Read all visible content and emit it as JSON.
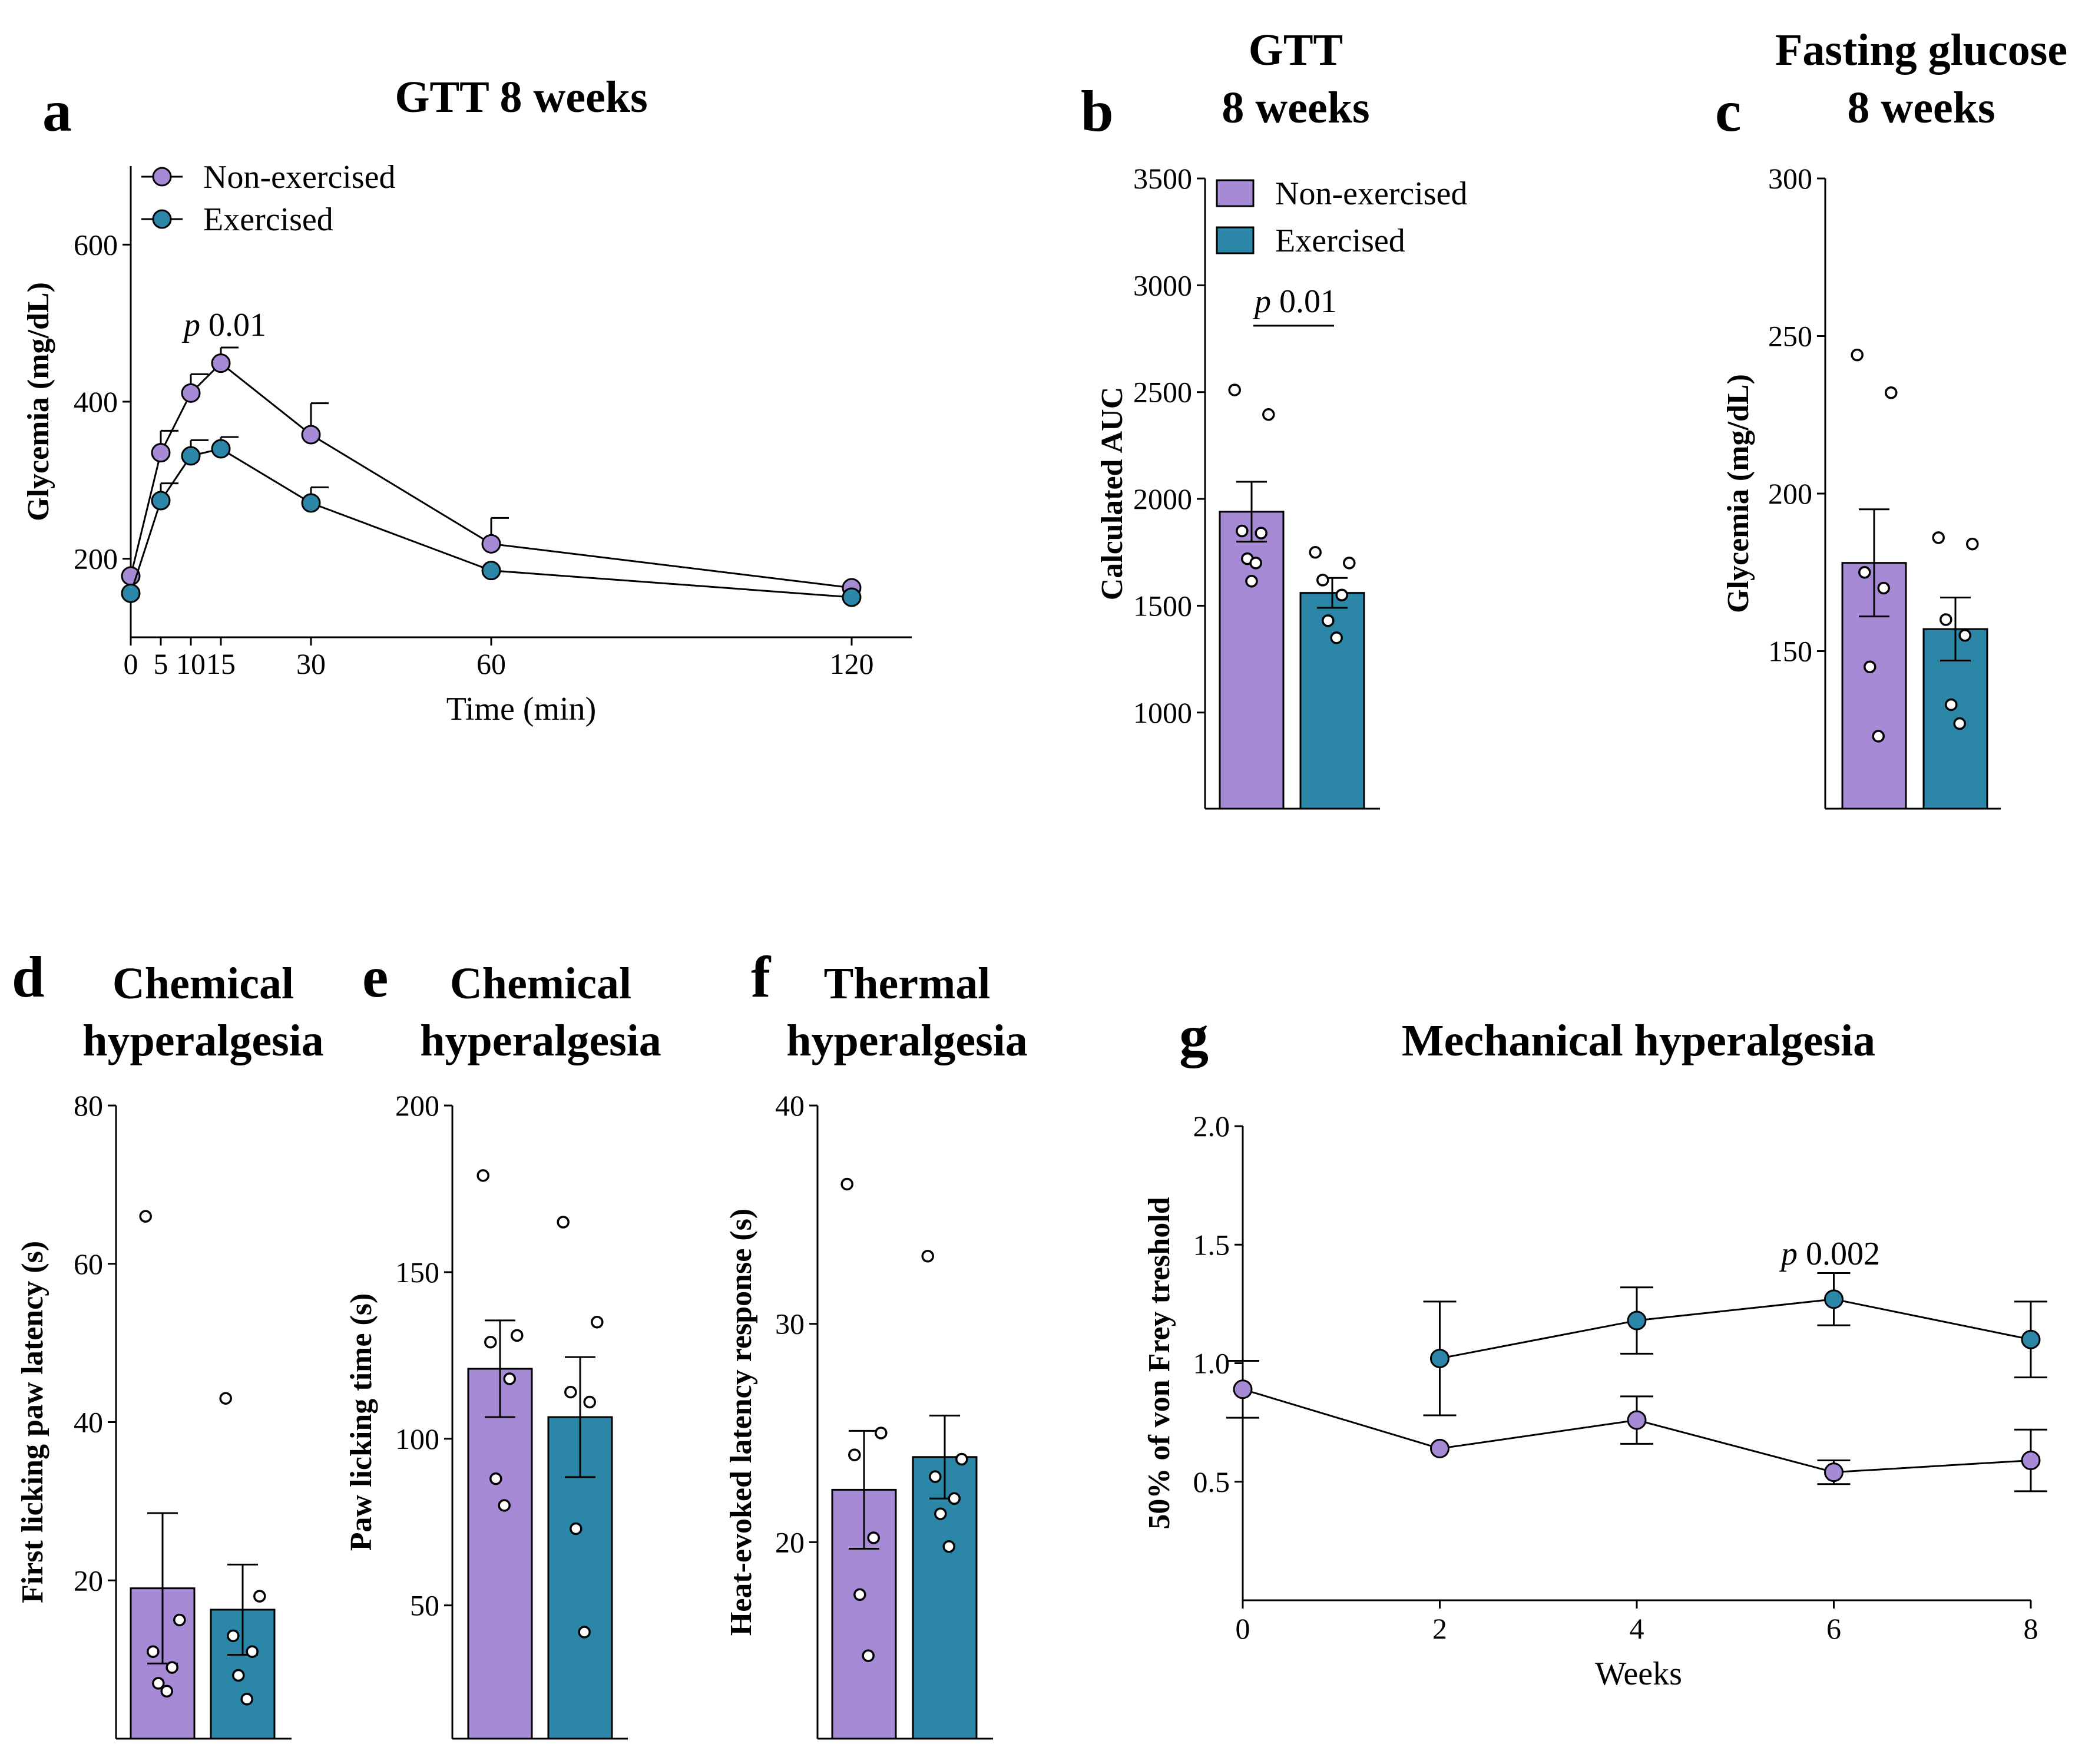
{
  "colors": {
    "non_exercised": "#A68ad6",
    "exercised": "#2c86a8",
    "axis": "#000000"
  },
  "legend": {
    "non_exercised": "Non-exercised",
    "exercised": "Exercised"
  },
  "chart_data": [
    {
      "id": "a",
      "panel_label": "a",
      "type": "line",
      "title": "GTT 8 weeks",
      "xlabel": "Time (min)",
      "ylabel": "Glycemia (mg/dL)",
      "x": [
        0,
        5,
        10,
        15,
        30,
        60,
        120
      ],
      "x_ticks": [
        0,
        5,
        10,
        15,
        30,
        60,
        120
      ],
      "y_ticks": [
        200,
        400,
        600
      ],
      "xlim": [
        0,
        125
      ],
      "ylim": [
        100,
        700
      ],
      "series": [
        {
          "name": "Non-exercised",
          "values": [
            178,
            335,
            411,
            449,
            358,
            219,
            163
          ],
          "errors": [
            0,
            28,
            24,
            20,
            40,
            33,
            0
          ]
        },
        {
          "name": "Exercised",
          "values": [
            156,
            274,
            331,
            340,
            271,
            185,
            151
          ],
          "errors": [
            0,
            22,
            20,
            15,
            20,
            0,
            0
          ]
        }
      ],
      "annotation": {
        "p": "p",
        "text": " 0.01"
      }
    },
    {
      "id": "b",
      "panel_label": "b",
      "type": "bar",
      "title": [
        "GTT",
        "8 weeks"
      ],
      "ylabel": "Calculated AUC",
      "y_ticks": [
        1000,
        1500,
        2000,
        2500,
        3000,
        3500
      ],
      "ylim": [
        550,
        3500
      ],
      "categories": [
        "Non-exercised",
        "Exercised"
      ],
      "values": [
        1940,
        1560
      ],
      "errors": [
        140,
        70
      ],
      "points": [
        [
          2510,
          2395,
          1850,
          1840,
          1720,
          1700,
          1615
        ],
        [
          1750,
          1700,
          1620,
          1550,
          1430,
          1350
        ]
      ],
      "annotation": {
        "p": "p",
        "text": " 0.01"
      }
    },
    {
      "id": "c",
      "panel_label": "c",
      "type": "bar",
      "title": [
        "Fasting glucose",
        "8 weeks"
      ],
      "ylabel": "Glycemia (mg/dL)",
      "y_ticks": [
        150,
        200,
        250,
        300
      ],
      "ylim": [
        100,
        300
      ],
      "categories": [
        "Non-exercised",
        "Exercised"
      ],
      "values": [
        178,
        157
      ],
      "errors": [
        17,
        10
      ],
      "points": [
        [
          244,
          232,
          175,
          170,
          145,
          123
        ],
        [
          186,
          184,
          160,
          155,
          133,
          127
        ]
      ]
    },
    {
      "id": "d",
      "panel_label": "d",
      "type": "bar",
      "title": [
        "Chemical",
        "hyperalgesia"
      ],
      "ylabel": "First licking paw latency (s)",
      "y_ticks": [
        20,
        40,
        60,
        80
      ],
      "ylim": [
        0,
        80
      ],
      "categories": [
        "Non-exercised",
        "Exercised"
      ],
      "values": [
        19,
        16.3
      ],
      "errors": [
        9.5,
        5.7
      ],
      "points": [
        [
          66,
          15,
          11,
          9,
          7,
          6
        ],
        [
          43,
          18,
          13,
          11,
          8,
          5
        ]
      ]
    },
    {
      "id": "e",
      "panel_label": "e",
      "type": "bar",
      "title": [
        "Chemical",
        "hyperalgesia"
      ],
      "ylabel": "Paw licking time (s)",
      "y_ticks": [
        50,
        100,
        150,
        200
      ],
      "ylim": [
        10,
        200
      ],
      "categories": [
        "Non-exercised",
        "Exercised"
      ],
      "values": [
        121,
        106.5
      ],
      "errors": [
        14.5,
        18
      ],
      "points": [
        [
          179,
          131,
          129,
          118,
          88,
          80
        ],
        [
          165,
          135,
          114,
          111,
          73,
          42
        ]
      ]
    },
    {
      "id": "f",
      "panel_label": "f",
      "type": "bar",
      "title": [
        "Thermal",
        "hyperalgesia"
      ],
      "ylabel": "Heat-evoked latency response (s)",
      "y_ticks": [
        20,
        30,
        40
      ],
      "ylim": [
        11,
        40
      ],
      "categories": [
        "Non-exercised",
        "Exercised"
      ],
      "values": [
        22.4,
        23.9
      ],
      "errors": [
        2.7,
        1.9
      ],
      "points": [
        [
          36.4,
          25,
          24,
          20.2,
          17.6,
          14.8
        ],
        [
          33.1,
          23.8,
          23,
          22,
          21.3,
          19.8
        ]
      ]
    },
    {
      "id": "g",
      "panel_label": "g",
      "type": "line",
      "title": "Mechanical hyperalgesia",
      "xlabel": "Weeks",
      "ylabel": "50% of von Frey treshold",
      "x_ticks": [
        0,
        2,
        4,
        6,
        8
      ],
      "y_ticks": [
        0.5,
        1.0,
        1.5,
        2.0
      ],
      "y_tick_labels": [
        "0.5",
        "1.0",
        "1.5",
        "2.0"
      ],
      "xlim": [
        0,
        8
      ],
      "ylim": [
        0,
        2.0
      ],
      "series": [
        {
          "name": "Non-exercised",
          "x": [
            0,
            2,
            4,
            6,
            8
          ],
          "values": [
            0.89,
            0.64,
            0.76,
            0.54,
            0.59
          ],
          "errors": [
            0.12,
            0,
            0.1,
            0.05,
            0.13
          ]
        },
        {
          "name": "Exercised",
          "x": [
            2,
            4,
            6,
            8
          ],
          "values": [
            1.02,
            1.18,
            1.27,
            1.1
          ],
          "errors": [
            0.24,
            0.14,
            0.11,
            0.16
          ]
        }
      ],
      "annotation": {
        "p": "p",
        "text": " 0.002"
      }
    }
  ]
}
